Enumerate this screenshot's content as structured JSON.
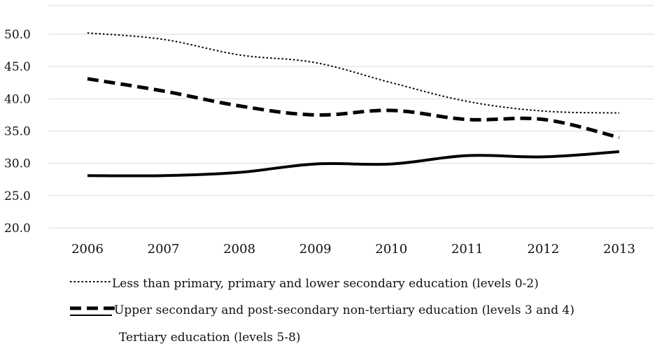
{
  "chart_data": {
    "type": "line",
    "x": [
      "2006",
      "2007",
      "2008",
      "2009",
      "2010",
      "2011",
      "2012",
      "2013"
    ],
    "ylim": [
      20.0,
      50.0
    ],
    "yticks": [
      "20.0",
      "25.0",
      "30.0",
      "35.0",
      "40.0",
      "45.0",
      "50.0"
    ],
    "grid": true,
    "legend_position": "bottom",
    "title": "",
    "xlabel": "",
    "ylabel": "",
    "series": [
      {
        "name": "Less than primary, primary and lower secondary education (levels 0-2)",
        "values": [
          50.2,
          49.2,
          46.8,
          45.6,
          42.5,
          39.6,
          38.1,
          37.8
        ],
        "style": "dotted",
        "color": "#000000"
      },
      {
        "name": "Upper secondary and post-secondary non-tertiary education (levels 3 and 4)",
        "values": [
          43.1,
          41.2,
          38.9,
          37.5,
          38.2,
          36.8,
          36.8,
          34.0
        ],
        "style": "dashed",
        "color": "#000000"
      },
      {
        "name": "Tertiary education (levels 5-8)",
        "values": [
          28.1,
          28.1,
          28.6,
          29.9,
          29.9,
          31.2,
          31.0,
          31.8
        ],
        "style": "solid",
        "color": "#000000"
      }
    ]
  }
}
